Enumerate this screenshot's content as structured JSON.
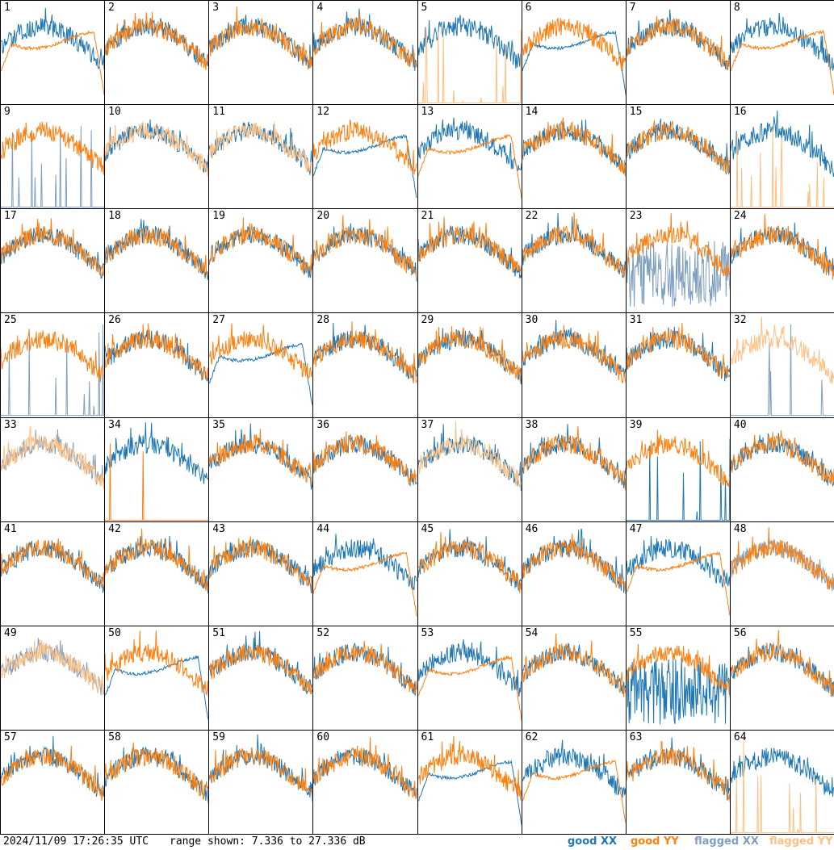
{
  "footer": {
    "timestamp": "2024/11/09 17:26:35 UTC",
    "range_text": "range shown: 7.336 to 27.336 dB"
  },
  "legend": [
    {
      "state": "good",
      "pol": "XX",
      "color": "#1f77b4"
    },
    {
      "state": "good",
      "pol": "YY",
      "color": "#ff7f0e"
    },
    {
      "state": "flagged",
      "pol": "XX",
      "color": "#7f9fbf"
    },
    {
      "state": "flagged",
      "pol": "YY",
      "color": "#ffbf80"
    }
  ],
  "chart_data": {
    "type": "line",
    "title": "",
    "grid_rows": 8,
    "grid_cols": 8,
    "ylim": [
      7.336,
      27.336
    ],
    "yunit": "dB",
    "series_order_note": "",
    "panels": [
      {
        "label": "1",
        "xx": "good",
        "yy": "good",
        "shape_xx": "normal",
        "shape_yy": "rolloff"
      },
      {
        "label": "2",
        "xx": "good",
        "yy": "good",
        "shape_xx": "normal",
        "shape_yy": "normal"
      },
      {
        "label": "3",
        "xx": "good",
        "yy": "good",
        "shape_xx": "normal",
        "shape_yy": "normal"
      },
      {
        "label": "4",
        "xx": "good",
        "yy": "good",
        "shape_xx": "normal",
        "shape_yy": "normal"
      },
      {
        "label": "5",
        "xx": "good",
        "yy": "flagged",
        "shape_xx": "normal",
        "shape_yy": "dead"
      },
      {
        "label": "6",
        "xx": "good",
        "yy": "good",
        "shape_xx": "rolloff",
        "shape_yy": "normal"
      },
      {
        "label": "7",
        "xx": "good",
        "yy": "good",
        "shape_xx": "normal",
        "shape_yy": "normal"
      },
      {
        "label": "8",
        "xx": "good",
        "yy": "good",
        "shape_xx": "normal",
        "shape_yy": "rolloff"
      },
      {
        "label": "9",
        "xx": "flagged",
        "yy": "good",
        "shape_xx": "dead",
        "shape_yy": "normal"
      },
      {
        "label": "10",
        "xx": "good",
        "yy": "flagged",
        "shape_xx": "normal",
        "shape_yy": "normal"
      },
      {
        "label": "11",
        "xx": "good",
        "yy": "flagged",
        "shape_xx": "normal",
        "shape_yy": "normal"
      },
      {
        "label": "12",
        "xx": "good",
        "yy": "good",
        "shape_xx": "rolloff",
        "shape_yy": "normal"
      },
      {
        "label": "13",
        "xx": "good",
        "yy": "good",
        "shape_xx": "normal",
        "shape_yy": "rolloff"
      },
      {
        "label": "14",
        "xx": "good",
        "yy": "good",
        "shape_xx": "normal",
        "shape_yy": "normal"
      },
      {
        "label": "15",
        "xx": "good",
        "yy": "good",
        "shape_xx": "normal",
        "shape_yy": "normal"
      },
      {
        "label": "16",
        "xx": "good",
        "yy": "flagged",
        "shape_xx": "normal",
        "shape_yy": "dead"
      },
      {
        "label": "17",
        "xx": "good",
        "yy": "good",
        "shape_xx": "normal",
        "shape_yy": "normal"
      },
      {
        "label": "18",
        "xx": "good",
        "yy": "good",
        "shape_xx": "normal",
        "shape_yy": "normal"
      },
      {
        "label": "19",
        "xx": "good",
        "yy": "good",
        "shape_xx": "normal",
        "shape_yy": "normal"
      },
      {
        "label": "20",
        "xx": "good",
        "yy": "good",
        "shape_xx": "normal",
        "shape_yy": "normal"
      },
      {
        "label": "21",
        "xx": "good",
        "yy": "good",
        "shape_xx": "normal",
        "shape_yy": "normal"
      },
      {
        "label": "22",
        "xx": "good",
        "yy": "good",
        "shape_xx": "normal",
        "shape_yy": "normal"
      },
      {
        "label": "23",
        "xx": "flagged",
        "yy": "good",
        "shape_xx": "noisy",
        "shape_yy": "normal"
      },
      {
        "label": "24",
        "xx": "good",
        "yy": "good",
        "shape_xx": "normal",
        "shape_yy": "normal"
      },
      {
        "label": "25",
        "xx": "flagged",
        "yy": "good",
        "shape_xx": "dead",
        "shape_yy": "normal"
      },
      {
        "label": "26",
        "xx": "good",
        "yy": "good",
        "shape_xx": "normal",
        "shape_yy": "normal"
      },
      {
        "label": "27",
        "xx": "good",
        "yy": "good",
        "shape_xx": "rolloff",
        "shape_yy": "normal"
      },
      {
        "label": "28",
        "xx": "good",
        "yy": "good",
        "shape_xx": "normal",
        "shape_yy": "normal"
      },
      {
        "label": "29",
        "xx": "good",
        "yy": "good",
        "shape_xx": "normal",
        "shape_yy": "normal"
      },
      {
        "label": "30",
        "xx": "good",
        "yy": "good",
        "shape_xx": "normal",
        "shape_yy": "normal"
      },
      {
        "label": "31",
        "xx": "good",
        "yy": "good",
        "shape_xx": "normal",
        "shape_yy": "normal"
      },
      {
        "label": "32",
        "xx": "flagged",
        "yy": "flagged",
        "shape_xx": "dead",
        "shape_yy": "normal"
      },
      {
        "label": "33",
        "xx": "flagged",
        "yy": "flagged",
        "shape_xx": "normal",
        "shape_yy": "normal"
      },
      {
        "label": "34",
        "xx": "good",
        "yy": "good",
        "shape_xx": "normal",
        "shape_yy": "dead"
      },
      {
        "label": "35",
        "xx": "good",
        "yy": "good",
        "shape_xx": "normal",
        "shape_yy": "normal"
      },
      {
        "label": "36",
        "xx": "good",
        "yy": "good",
        "shape_xx": "normal",
        "shape_yy": "normal"
      },
      {
        "label": "37",
        "xx": "good",
        "yy": "flagged",
        "shape_xx": "normal",
        "shape_yy": "normal"
      },
      {
        "label": "38",
        "xx": "good",
        "yy": "good",
        "shape_xx": "normal",
        "shape_yy": "normal"
      },
      {
        "label": "39",
        "xx": "good",
        "yy": "good",
        "shape_xx": "dead",
        "shape_yy": "normal"
      },
      {
        "label": "40",
        "xx": "good",
        "yy": "good",
        "shape_xx": "normal",
        "shape_yy": "normal"
      },
      {
        "label": "41",
        "xx": "good",
        "yy": "good",
        "shape_xx": "normal",
        "shape_yy": "normal"
      },
      {
        "label": "42",
        "xx": "good",
        "yy": "good",
        "shape_xx": "normal",
        "shape_yy": "normal"
      },
      {
        "label": "43",
        "xx": "good",
        "yy": "good",
        "shape_xx": "normal",
        "shape_yy": "normal"
      },
      {
        "label": "44",
        "xx": "good",
        "yy": "good",
        "shape_xx": "normal",
        "shape_yy": "rolloff"
      },
      {
        "label": "45",
        "xx": "good",
        "yy": "good",
        "shape_xx": "normal",
        "shape_yy": "normal"
      },
      {
        "label": "46",
        "xx": "good",
        "yy": "good",
        "shape_xx": "normal",
        "shape_yy": "normal"
      },
      {
        "label": "47",
        "xx": "good",
        "yy": "good",
        "shape_xx": "normal",
        "shape_yy": "rolloff"
      },
      {
        "label": "48",
        "xx": "flagged",
        "yy": "good",
        "shape_xx": "normal",
        "shape_yy": "normal"
      },
      {
        "label": "49",
        "xx": "flagged",
        "yy": "flagged",
        "shape_xx": "normal",
        "shape_yy": "normal"
      },
      {
        "label": "50",
        "xx": "good",
        "yy": "good",
        "shape_xx": "rolloff",
        "shape_yy": "normal"
      },
      {
        "label": "51",
        "xx": "good",
        "yy": "good",
        "shape_xx": "normal",
        "shape_yy": "normal"
      },
      {
        "label": "52",
        "xx": "good",
        "yy": "good",
        "shape_xx": "normal",
        "shape_yy": "normal"
      },
      {
        "label": "53",
        "xx": "good",
        "yy": "good",
        "shape_xx": "normal",
        "shape_yy": "rolloff"
      },
      {
        "label": "54",
        "xx": "good",
        "yy": "good",
        "shape_xx": "normal",
        "shape_yy": "normal"
      },
      {
        "label": "55",
        "xx": "good",
        "yy": "good",
        "shape_xx": "noisy",
        "shape_yy": "normal"
      },
      {
        "label": "56",
        "xx": "good",
        "yy": "good",
        "shape_xx": "normal",
        "shape_yy": "normal"
      },
      {
        "label": "57",
        "xx": "good",
        "yy": "good",
        "shape_xx": "normal",
        "shape_yy": "normal"
      },
      {
        "label": "58",
        "xx": "good",
        "yy": "good",
        "shape_xx": "normal",
        "shape_yy": "normal"
      },
      {
        "label": "59",
        "xx": "good",
        "yy": "good",
        "shape_xx": "normal",
        "shape_yy": "normal"
      },
      {
        "label": "60",
        "xx": "good",
        "yy": "good",
        "shape_xx": "normal",
        "shape_yy": "normal"
      },
      {
        "label": "61",
        "xx": "good",
        "yy": "good",
        "shape_xx": "rolloff",
        "shape_yy": "normal"
      },
      {
        "label": "62",
        "xx": "good",
        "yy": "good",
        "shape_xx": "normal",
        "shape_yy": "rolloff"
      },
      {
        "label": "63",
        "xx": "good",
        "yy": "good",
        "shape_xx": "normal",
        "shape_yy": "normal"
      },
      {
        "label": "64",
        "xx": "good",
        "yy": "flagged",
        "shape_xx": "normal",
        "shape_yy": "dead"
      }
    ]
  }
}
